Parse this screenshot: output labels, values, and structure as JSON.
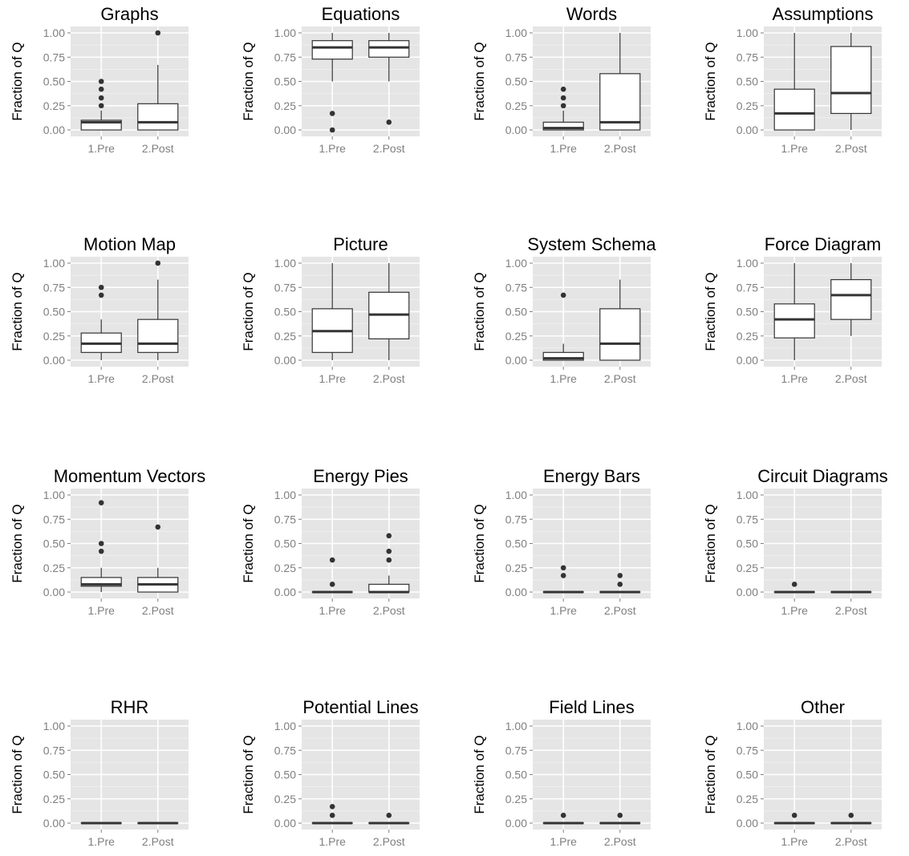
{
  "chart_data": {
    "type": "boxplot",
    "ylabel": "Fraction of Q",
    "categories": [
      "1.Pre",
      "2.Post"
    ],
    "ylim": [
      0,
      1
    ],
    "yticks": [
      0,
      0.25,
      0.5,
      0.75,
      1
    ],
    "ytick_labels": [
      "0.00",
      "0.25",
      "0.50",
      "0.75",
      "1.00"
    ],
    "grid": true,
    "panels": [
      {
        "title": "Graphs",
        "boxes": [
          {
            "category": "1.Pre",
            "min": 0,
            "q1": 0,
            "median": 0.08,
            "q3": 0.1,
            "max": 0.2,
            "outliers": [
              0.25,
              0.33,
              0.42,
              0.5
            ]
          },
          {
            "category": "2.Post",
            "min": 0,
            "q1": 0,
            "median": 0.08,
            "q3": 0.27,
            "max": 0.67,
            "outliers": [
              1.0
            ]
          }
        ]
      },
      {
        "title": "Equations",
        "boxes": [
          {
            "category": "1.Pre",
            "min": 0.5,
            "q1": 0.73,
            "median": 0.85,
            "q3": 0.92,
            "max": 1.0,
            "outliers": [
              0.0,
              0.17
            ]
          },
          {
            "category": "2.Post",
            "min": 0.5,
            "q1": 0.75,
            "median": 0.85,
            "q3": 0.92,
            "max": 1.0,
            "outliers": [
              0.08
            ]
          }
        ]
      },
      {
        "title": "Words",
        "boxes": [
          {
            "category": "1.Pre",
            "min": 0,
            "q1": 0,
            "median": 0.02,
            "q3": 0.08,
            "max": 0.2,
            "outliers": [
              0.25,
              0.33,
              0.42
            ]
          },
          {
            "category": "2.Post",
            "min": 0,
            "q1": 0,
            "median": 0.08,
            "q3": 0.58,
            "max": 1.0,
            "outliers": []
          }
        ]
      },
      {
        "title": "Assumptions",
        "boxes": [
          {
            "category": "1.Pre",
            "min": 0,
            "q1": 0,
            "median": 0.17,
            "q3": 0.42,
            "max": 1.0,
            "outliers": []
          },
          {
            "category": "2.Post",
            "min": 0,
            "q1": 0.17,
            "median": 0.38,
            "q3": 0.86,
            "max": 1.0,
            "outliers": []
          }
        ]
      },
      {
        "title": "Motion Map",
        "boxes": [
          {
            "category": "1.Pre",
            "min": 0,
            "q1": 0.08,
            "median": 0.17,
            "q3": 0.28,
            "max": 0.42,
            "outliers": [
              0.67,
              0.75
            ]
          },
          {
            "category": "2.Post",
            "min": 0,
            "q1": 0.08,
            "median": 0.17,
            "q3": 0.42,
            "max": 0.83,
            "outliers": [
              1.0
            ]
          }
        ]
      },
      {
        "title": "Picture",
        "boxes": [
          {
            "category": "1.Pre",
            "min": 0,
            "q1": 0.08,
            "median": 0.3,
            "q3": 0.53,
            "max": 1.0,
            "outliers": []
          },
          {
            "category": "2.Post",
            "min": 0,
            "q1": 0.22,
            "median": 0.47,
            "q3": 0.7,
            "max": 1.0,
            "outliers": []
          }
        ]
      },
      {
        "title": "System Schema",
        "boxes": [
          {
            "category": "1.Pre",
            "min": 0,
            "q1": 0,
            "median": 0.02,
            "q3": 0.08,
            "max": 0.17,
            "outliers": [
              0.67
            ]
          },
          {
            "category": "2.Post",
            "min": 0,
            "q1": 0,
            "median": 0.17,
            "q3": 0.53,
            "max": 0.83,
            "outliers": []
          }
        ]
      },
      {
        "title": "Force Diagram",
        "boxes": [
          {
            "category": "1.Pre",
            "min": 0,
            "q1": 0.23,
            "median": 0.42,
            "q3": 0.58,
            "max": 1.0,
            "outliers": []
          },
          {
            "category": "2.Post",
            "min": 0.25,
            "q1": 0.42,
            "median": 0.67,
            "q3": 0.83,
            "max": 1.0,
            "outliers": []
          }
        ]
      },
      {
        "title": "Momentum Vectors",
        "boxes": [
          {
            "category": "1.Pre",
            "min": 0,
            "q1": 0.06,
            "median": 0.08,
            "q3": 0.15,
            "max": 0.25,
            "outliers": [
              0.42,
              0.5,
              0.92
            ]
          },
          {
            "category": "2.Post",
            "min": 0,
            "q1": 0,
            "median": 0.08,
            "q3": 0.15,
            "max": 0.25,
            "outliers": [
              0.67
            ]
          }
        ]
      },
      {
        "title": "Energy Pies",
        "boxes": [
          {
            "category": "1.Pre",
            "min": 0,
            "q1": 0,
            "median": 0,
            "q3": 0,
            "max": 0,
            "outliers": [
              0.08,
              0.33
            ]
          },
          {
            "category": "2.Post",
            "min": 0,
            "q1": 0,
            "median": 0,
            "q3": 0.08,
            "max": 0.17,
            "outliers": [
              0.33,
              0.42,
              0.58
            ]
          }
        ]
      },
      {
        "title": "Energy Bars",
        "boxes": [
          {
            "category": "1.Pre",
            "min": 0,
            "q1": 0,
            "median": 0,
            "q3": 0,
            "max": 0,
            "outliers": [
              0.17,
              0.25
            ]
          },
          {
            "category": "2.Post",
            "min": 0,
            "q1": 0,
            "median": 0,
            "q3": 0,
            "max": 0,
            "outliers": [
              0.08,
              0.17
            ]
          }
        ]
      },
      {
        "title": "Circuit Diagrams",
        "boxes": [
          {
            "category": "1.Pre",
            "min": 0,
            "q1": 0,
            "median": 0,
            "q3": 0,
            "max": 0,
            "outliers": [
              0.08
            ]
          },
          {
            "category": "2.Post",
            "min": 0,
            "q1": 0,
            "median": 0,
            "q3": 0,
            "max": 0,
            "outliers": []
          }
        ]
      },
      {
        "title": "RHR",
        "boxes": [
          {
            "category": "1.Pre",
            "min": 0,
            "q1": 0,
            "median": 0,
            "q3": 0,
            "max": 0,
            "outliers": []
          },
          {
            "category": "2.Post",
            "min": 0,
            "q1": 0,
            "median": 0,
            "q3": 0,
            "max": 0,
            "outliers": []
          }
        ]
      },
      {
        "title": "Potential Lines",
        "boxes": [
          {
            "category": "1.Pre",
            "min": 0,
            "q1": 0,
            "median": 0,
            "q3": 0,
            "max": 0,
            "outliers": [
              0.08,
              0.17
            ]
          },
          {
            "category": "2.Post",
            "min": 0,
            "q1": 0,
            "median": 0,
            "q3": 0,
            "max": 0,
            "outliers": [
              0.08
            ]
          }
        ]
      },
      {
        "title": "Field Lines",
        "boxes": [
          {
            "category": "1.Pre",
            "min": 0,
            "q1": 0,
            "median": 0,
            "q3": 0,
            "max": 0,
            "outliers": [
              0.08
            ]
          },
          {
            "category": "2.Post",
            "min": 0,
            "q1": 0,
            "median": 0,
            "q3": 0,
            "max": 0,
            "outliers": [
              0.08
            ]
          }
        ]
      },
      {
        "title": "Other",
        "boxes": [
          {
            "category": "1.Pre",
            "min": 0,
            "q1": 0,
            "median": 0,
            "q3": 0,
            "max": 0,
            "outliers": [
              0.08
            ]
          },
          {
            "category": "2.Post",
            "min": 0,
            "q1": 0,
            "median": 0,
            "q3": 0,
            "max": 0,
            "outliers": [
              0.08
            ]
          }
        ]
      }
    ]
  }
}
